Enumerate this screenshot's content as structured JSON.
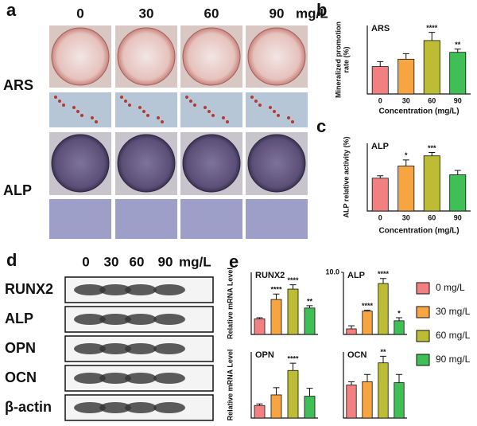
{
  "panel_a": {
    "label": "a",
    "columns": [
      "0",
      "30",
      "60",
      "90"
    ],
    "unit": "mg/L",
    "rows": [
      "ARS",
      "ALP"
    ]
  },
  "panel_b": {
    "label": "b"
  },
  "panel_c": {
    "label": "c"
  },
  "panel_d": {
    "label": "d",
    "columns": [
      "0",
      "30",
      "60",
      "90"
    ],
    "unit": "mg/L",
    "bands": [
      "RUNX2",
      "ALP",
      "OPN",
      "OCN",
      "β-actin"
    ]
  },
  "panel_e": {
    "label": "e",
    "legend": [
      {
        "name": "0 mg/L",
        "color": "#f28080"
      },
      {
        "name": "30 mg/L",
        "color": "#f7a443"
      },
      {
        "name": "60 mg/L",
        "color": "#bcbd34"
      },
      {
        "name": "90 mg/L",
        "color": "#3fbf55"
      }
    ]
  },
  "chart_data": [
    {
      "type": "bar",
      "title": "ARS",
      "ylabel": [
        "Mineralized promotion",
        "rate (%)"
      ],
      "xlabel": "Concentration (mg/L)",
      "categories": [
        "0",
        "30",
        "60",
        "90"
      ],
      "values": [
        1.0,
        1.27,
        1.95,
        1.52
      ],
      "errors": [
        0.18,
        0.2,
        0.3,
        0.12
      ],
      "annotations": [
        null,
        null,
        "****",
        "**"
      ],
      "colors": [
        "#f28080",
        "#f7a443",
        "#bcbd34",
        "#3fbf55"
      ],
      "ylim": [
        0,
        2.5
      ]
    },
    {
      "type": "bar",
      "title": "ALP",
      "ylabel": [
        "ALP relative activity (%)"
      ],
      "xlabel": "Concentration (mg/L)",
      "categories": [
        "0",
        "30",
        "60",
        "90"
      ],
      "values": [
        0.97,
        1.33,
        1.63,
        1.07
      ],
      "errors": [
        0.07,
        0.18,
        0.1,
        0.13
      ],
      "annotations": [
        null,
        "*",
        "***",
        null
      ],
      "colors": [
        "#f28080",
        "#f7a443",
        "#bcbd34",
        "#3fbf55"
      ],
      "ylim": [
        0,
        2
      ]
    },
    {
      "type": "bar",
      "title": "RUNX2",
      "ylabel": [
        "Relative mRNA Level"
      ],
      "values": [
        1.0,
        2.25,
        2.92,
        1.7
      ],
      "errors": [
        0.08,
        0.35,
        0.28,
        0.15
      ],
      "annotations": [
        null,
        "****",
        "****",
        "**"
      ],
      "colors": [
        "#f28080",
        "#f7a443",
        "#bcbd34",
        "#3fbf55"
      ],
      "ylim": [
        0,
        4
      ]
    },
    {
      "type": "bar",
      "title": "ALP",
      "values": [
        0.9,
        3.75,
        8.2,
        2.2
      ],
      "errors": [
        0.5,
        0.15,
        0.8,
        0.5
      ],
      "annotations": [
        null,
        "****",
        "****",
        "*"
      ],
      "colors": [
        "#f28080",
        "#f7a443",
        "#bcbd34",
        "#3fbf55"
      ],
      "ylim": [
        0,
        10
      ],
      "yticks": [
        {
          "value": 10,
          "label": "10.0"
        }
      ]
    },
    {
      "type": "bar",
      "title": "OPN",
      "ylabel": [
        "Relative mRNA Level"
      ],
      "values": [
        0.95,
        1.75,
        3.6,
        1.65
      ],
      "errors": [
        0.12,
        0.55,
        0.55,
        0.6
      ],
      "annotations": [
        null,
        null,
        "****",
        null
      ],
      "colors": [
        "#f28080",
        "#f7a443",
        "#bcbd34",
        "#3fbf55"
      ],
      "ylim": [
        0,
        5
      ]
    },
    {
      "type": "bar",
      "title": "OCN",
      "values": [
        1.0,
        1.1,
        1.67,
        1.07
      ],
      "errors": [
        0.1,
        0.22,
        0.2,
        0.25
      ],
      "annotations": [
        null,
        null,
        "**",
        null
      ],
      "colors": [
        "#f28080",
        "#f7a443",
        "#bcbd34",
        "#3fbf55"
      ],
      "ylim": [
        0,
        2
      ]
    }
  ]
}
